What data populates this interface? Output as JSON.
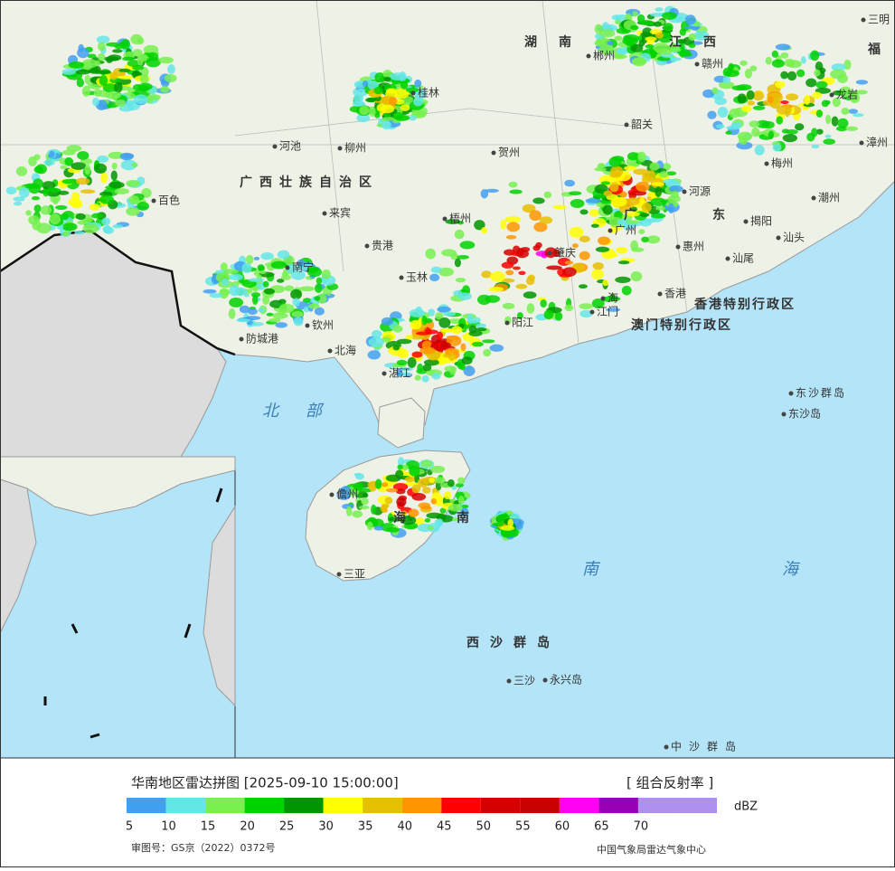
{
  "header": {
    "title": "华南地区雷达拼图 [2025-09-10 15:00:00]",
    "product": "[ 组合反射率 ]"
  },
  "legend": {
    "colors": [
      "#42a0f0",
      "#64e6e6",
      "#78f050",
      "#00d200",
      "#009600",
      "#ffff00",
      "#e6c000",
      "#ff9600",
      "#ff0000",
      "#d70000",
      "#c80000",
      "#ff00f0",
      "#9600b4",
      "#ad90f0",
      "#ad90f0"
    ],
    "ticks": [
      5,
      10,
      15,
      20,
      25,
      30,
      35,
      40,
      45,
      50,
      55,
      60,
      65,
      70
    ],
    "unit": "dBZ"
  },
  "footer": {
    "approval": "审图号：GS京（2022）0372号",
    "agency": "中国气象局雷达气象中心"
  },
  "map_labels": [
    "湖南",
    "江西",
    "福",
    "广西壮族自治区",
    "广",
    "东",
    "香港特别行政区",
    "澳门特别行政区",
    "北",
    "部",
    "南",
    "海",
    "南",
    "海",
    "西沙群岛",
    "东沙群岛",
    "中沙群岛",
    "郴州",
    "赣州",
    "韶关",
    "河池",
    "柳州",
    "贺州",
    "桂林",
    "百色",
    "来宾",
    "梧州",
    "贵港",
    "南宁",
    "玉林",
    "钦州",
    "防城港",
    "北海",
    "湛江",
    "阳江",
    "肇庆",
    "广州",
    "江门",
    "香港",
    "惠州",
    "河源",
    "梅州",
    "汕尾",
    "揭阳",
    "汕头",
    "潮州",
    "龙岩",
    "三明",
    "漳州",
    "三亚",
    "三沙",
    "永兴岛",
    "东沙岛",
    "儋州",
    "海"
  ]
}
